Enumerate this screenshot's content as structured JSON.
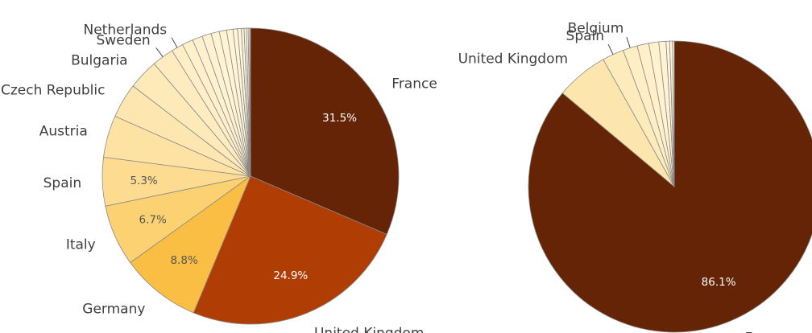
{
  "chart_data": [
    {
      "type": "pie",
      "slices": [
        {
          "label": "France",
          "value": 31.5,
          "value_label": "31.5%",
          "color": "#652405"
        },
        {
          "label": "United Kingdom",
          "value": 24.9,
          "value_label": "24.9%",
          "color": "#b03d04"
        },
        {
          "label": "Germany",
          "value": 8.8,
          "value_label": "8.8%",
          "color": "#fbbe45"
        },
        {
          "label": "Italy",
          "value": 6.7,
          "value_label": "6.7%",
          "color": "#fcd172"
        },
        {
          "label": "Spain",
          "value": 5.3,
          "value_label": "5.3%",
          "color": "#fddc92"
        },
        {
          "label": "Austria",
          "value": 4.6,
          "value_label": "",
          "color": "#fde2a4"
        },
        {
          "label": "Czech Republic",
          "value": 3.8,
          "value_label": "",
          "color": "#fee6b0"
        },
        {
          "label": "Bulgaria",
          "value": 3.3,
          "value_label": "",
          "color": "#fee9b9"
        },
        {
          "label": "Sweden",
          "value": 2.4,
          "value_label": "",
          "color": "#feecc0"
        },
        {
          "label": "Netherlands",
          "value": 1.3,
          "value_label": "",
          "color": "#ffeec6"
        },
        {
          "label": "",
          "value": 1.2,
          "value_label": "",
          "color": "#fff0ca"
        },
        {
          "label": "",
          "value": 1.1,
          "value_label": "",
          "color": "#fff1cd"
        },
        {
          "label": "",
          "value": 1.0,
          "value_label": "",
          "color": "#fff2d0"
        },
        {
          "label": "",
          "value": 0.9,
          "value_label": "",
          "color": "#fff3d2"
        },
        {
          "label": "",
          "value": 0.8,
          "value_label": "",
          "color": "#fff3d4"
        },
        {
          "label": "",
          "value": 0.7,
          "value_label": "",
          "color": "#fff4d6"
        },
        {
          "label": "",
          "value": 0.5,
          "value_label": "",
          "color": "#fff4d8"
        },
        {
          "label": "",
          "value": 0.4,
          "value_label": "",
          "color": "#fff5da"
        },
        {
          "label": "",
          "value": 0.3,
          "value_label": "",
          "color": "#fff5dc"
        },
        {
          "label": "",
          "value": 0.25,
          "value_label": "",
          "color": "#fff6de"
        },
        {
          "label": "",
          "value": 0.2,
          "value_label": "",
          "color": "#fff6e0"
        },
        {
          "label": "",
          "value": 0.15,
          "value_label": "",
          "color": "#fff7e2"
        },
        {
          "label": "",
          "value": 0.1,
          "value_label": "",
          "color": "#fff7e4"
        }
      ]
    },
    {
      "type": "pie",
      "slices": [
        {
          "label": "France",
          "value": 86.1,
          "value_label": "86.1%",
          "color": "#652405"
        },
        {
          "label": "United Kingdom",
          "value": 5.8,
          "value_label": "",
          "color": "#fde6ad"
        },
        {
          "label": "Spain",
          "value": 2.4,
          "value_label": "",
          "color": "#feebbc"
        },
        {
          "label": "Belgium",
          "value": 1.6,
          "value_label": "",
          "color": "#feeec4"
        },
        {
          "label": "",
          "value": 1.3,
          "value_label": "",
          "color": "#fff0ca"
        },
        {
          "label": "",
          "value": 1.1,
          "value_label": "",
          "color": "#fff2cf"
        },
        {
          "label": "",
          "value": 0.8,
          "value_label": "",
          "color": "#fff3d3"
        },
        {
          "label": "",
          "value": 0.4,
          "value_label": "",
          "color": "#fff4d7"
        },
        {
          "label": "",
          "value": 0.3,
          "value_label": "",
          "color": "#fff5db"
        },
        {
          "label": "",
          "value": 0.2,
          "value_label": "",
          "color": "#fff6df"
        }
      ]
    }
  ]
}
